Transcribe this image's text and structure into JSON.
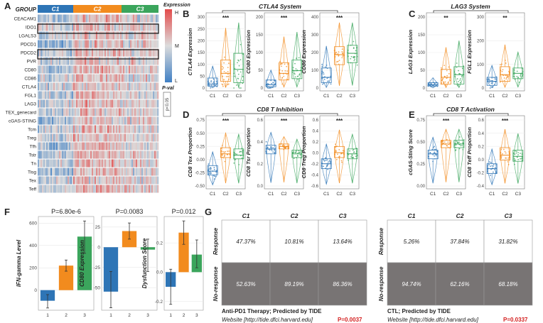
{
  "colors": {
    "c1": "#2E75B6",
    "c2": "#F28B1E",
    "c3": "#3BA55C",
    "heat_low": "#3F7FC4",
    "heat_mid": "#DCDCDC",
    "heat_high": "#E34B4B",
    "box_gray": "#7F7F7F",
    "pval_red": "#D42020"
  },
  "panels": {
    "A": "A",
    "B": "B",
    "C": "C",
    "D": "D",
    "E": "E",
    "F": "F",
    "G": "G"
  },
  "panelA": {
    "group_label": "GROUP",
    "groups": [
      "C1",
      "C2",
      "C3"
    ],
    "rows": [
      "CEACAM1",
      "IDO1",
      "LGALS3",
      "PDCD1",
      "PDCD2",
      "PVR",
      "CD80",
      "CD86",
      "CTLA4",
      "FGL1",
      "LAG3",
      "TEX_genecard",
      "cGAS-STING",
      "Tcm",
      "Treg",
      "Tfh",
      "Tstr",
      "Tn",
      "Tisg",
      "Tex",
      "Teff"
    ],
    "legend_title": "Expression",
    "legend_high": "H",
    "legend_mid": "M",
    "legend_low": "L",
    "pval_label": "P-val",
    "pval_box": "p<0.05"
  },
  "panelB": {
    "title": "CTLA4 System",
    "plots": [
      {
        "ylabel": "CTLA4 Expression",
        "sig": "***",
        "ticks": [
          "0",
          "50",
          "100",
          "150",
          "200",
          "250",
          "300"
        ]
      },
      {
        "ylabel": "CD80 Expression",
        "sig": "***",
        "ticks": [
          "0",
          "50",
          "100",
          "150",
          "200"
        ]
      },
      {
        "ylabel": "CD86 Expression",
        "sig": "***",
        "ticks": [
          "0",
          "100",
          "200",
          "300",
          "400"
        ]
      }
    ]
  },
  "panelC": {
    "title": "LAG3 System",
    "plots": [
      {
        "ylabel": "LAG3 Expression",
        "sig": "**",
        "ticks": [
          "0",
          "50",
          "100",
          "150",
          "200"
        ]
      },
      {
        "ylabel": "FGL1 Expression",
        "sig": "**",
        "ticks": [
          "0",
          "100",
          "200",
          "300"
        ]
      }
    ]
  },
  "panelD": {
    "title": "CD8 T Inhibition",
    "plots": [
      {
        "ylabel": "CD8 Tex Proportion",
        "sig": "***",
        "ticks": [
          "-0.50",
          "-0.25",
          "0.00",
          "0.25",
          "0.50",
          "0.75"
        ]
      },
      {
        "ylabel": "CD8 Tsr Proportion",
        "sig": "***",
        "ticks": [
          "0.0",
          "0.2",
          "0.4",
          "0.6"
        ]
      },
      {
        "ylabel": "CD8 Treg Proportion",
        "sig": "***",
        "ticks": [
          "-0.6",
          "-0.4",
          "-0.2",
          "0.0",
          "0.2",
          "0.4",
          "0.6"
        ]
      }
    ]
  },
  "panelE": {
    "title": "CD8 T Activation",
    "plots": [
      {
        "ylabel": "cGAS-Sting Score",
        "sig": "***",
        "ticks": [
          "0.00",
          "0.25",
          "0.50",
          "0.75"
        ]
      },
      {
        "ylabel": "CD8 Teff Proportion",
        "sig": "***",
        "ticks": [
          "-0.4",
          "-0.2",
          "0.0",
          "0.2",
          "0.4",
          "0.6"
        ]
      }
    ]
  },
  "xcats": [
    "C1",
    "C2",
    "C3"
  ],
  "chart_data": [
    {
      "type": "bar",
      "title": "P=6.80e-6",
      "ylabel": "IFN-gamma Level",
      "categories": [
        "1",
        "2",
        "3"
      ],
      "values": [
        -95,
        220,
        480
      ],
      "errors": [
        [
          -160,
          -40
        ],
        [
          170,
          270
        ],
        [
          330,
          620
        ]
      ],
      "ylim": [
        -180,
        660
      ],
      "yticks": [
        "0",
        "200",
        "400",
        "600"
      ]
    },
    {
      "type": "bar",
      "title": "P=0.0083",
      "ylabel": "CD80 Expression",
      "categories": [
        "1",
        "2",
        "3"
      ],
      "values": [
        -55,
        20,
        -3
      ],
      "errors": [
        [
          -75,
          -30
        ],
        [
          10,
          30
        ],
        [
          -30,
          10
        ]
      ],
      "ylim": [
        -78,
        38
      ],
      "yticks": [
        "-50",
        "-25",
        "0",
        "25"
      ]
    },
    {
      "type": "bar",
      "title": "P=0.012",
      "ylabel": "Dysfunction Score",
      "categories": [
        "1",
        "2",
        "3"
      ],
      "values": [
        -0.1,
        0.27,
        0.12
      ],
      "errors": [
        [
          -0.22,
          0.02
        ],
        [
          0.19,
          0.35
        ],
        [
          0.03,
          0.22
        ]
      ],
      "ylim": [
        -0.26,
        0.38
      ],
      "yticks": [
        "-0.2",
        "0.0",
        "0.2"
      ]
    }
  ],
  "panelG": {
    "tables": [
      {
        "cols": [
          "C1",
          "C2",
          "C3"
        ],
        "rows": [
          "Response",
          "No-response"
        ],
        "cells": [
          [
            "47.37%",
            "10.81%",
            "13.64%"
          ],
          [
            "52.63%",
            "89.19%",
            "86.36%"
          ]
        ],
        "caption": "Anti-PD1 Therapy; Predicted by TIDE",
        "website": "Website [http://tide.dfci.harvard.edu]",
        "pval": "P=0.0037"
      },
      {
        "cols": [
          "C1",
          "C2",
          "C3"
        ],
        "rows": [
          "Response",
          "No-response"
        ],
        "cells": [
          [
            "5.26%",
            "37.84%",
            "31.82%"
          ],
          [
            "94.74%",
            "62.16%",
            "68.18%"
          ]
        ],
        "caption": "CTL; Predicted by TIDE",
        "website": "Website [http://tide.dfci.harvard.edu]",
        "pval": "P=0.0337"
      }
    ]
  }
}
